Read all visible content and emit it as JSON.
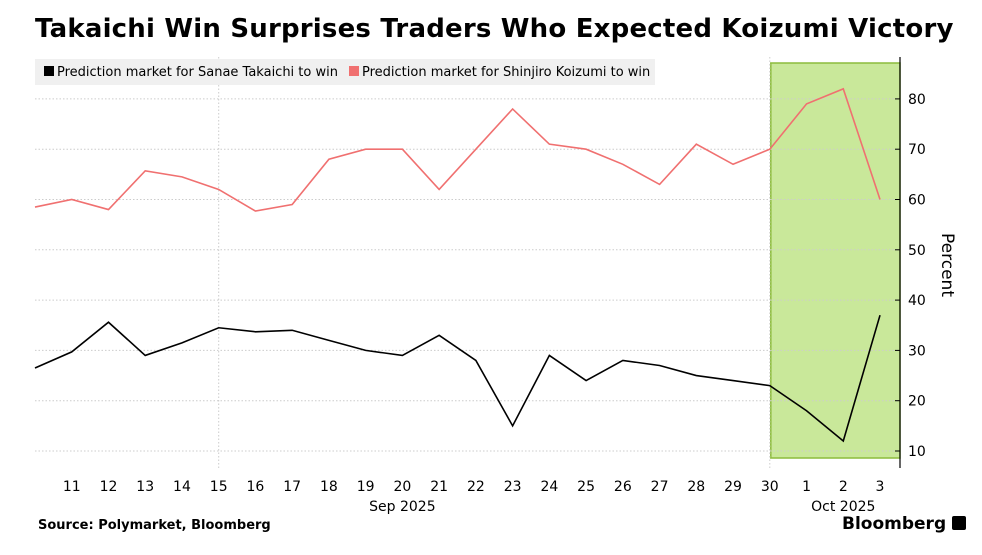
{
  "title": "Takaichi Win Surprises Traders Who Expected Koizumi Victory",
  "source": "Source: Polymarket, Bloomberg",
  "brand": "Bloomberg",
  "chart_data": {
    "type": "line",
    "x": [
      "Sep 10",
      "Sep 11",
      "Sep 12",
      "Sep 13",
      "Sep 14",
      "Sep 15",
      "Sep 16",
      "Sep 17",
      "Sep 18",
      "Sep 19",
      "Sep 20",
      "Sep 21",
      "Sep 22",
      "Sep 23",
      "Sep 24",
      "Sep 25",
      "Sep 26",
      "Sep 27",
      "Sep 28",
      "Sep 29",
      "Sep 30",
      "Oct 1",
      "Oct 2",
      "Oct 3"
    ],
    "x_tick_labels": [
      "11",
      "12",
      "13",
      "14",
      "15",
      "16",
      "17",
      "18",
      "19",
      "20",
      "21",
      "22",
      "23",
      "24",
      "25",
      "26",
      "27",
      "28",
      "29",
      "30",
      "1",
      "2",
      "3"
    ],
    "x_group_labels": [
      "Sep 2025",
      "Oct 2025"
    ],
    "ylabel": "Percent",
    "ylim": [
      8,
      88
    ],
    "y_ticks": [
      10,
      20,
      30,
      40,
      50,
      60,
      70,
      80
    ],
    "y_axis_side": "right",
    "grid": true,
    "legend_placement": "top-left",
    "highlight": {
      "from": "Sep 30",
      "to": "Oct 3",
      "color": "#c9e89a"
    },
    "series": [
      {
        "name": "Prediction market for Sanae Takaichi to win",
        "color": "#000000",
        "values": [
          26.5,
          29.7,
          35.6,
          29,
          31.5,
          34.5,
          33.7,
          34,
          32,
          30,
          29,
          33,
          28,
          15,
          29,
          24,
          28,
          27,
          25,
          24,
          23,
          18,
          12,
          37
        ]
      },
      {
        "name": "Prediction market for Shinjiro Koizumi to win",
        "color": "#f07070",
        "values": [
          58.5,
          60,
          58,
          65.7,
          64.5,
          62,
          57.7,
          59,
          68,
          70,
          70,
          62,
          70,
          78,
          71,
          70,
          67,
          63,
          71,
          67,
          70,
          79,
          82,
          60
        ]
      }
    ]
  }
}
